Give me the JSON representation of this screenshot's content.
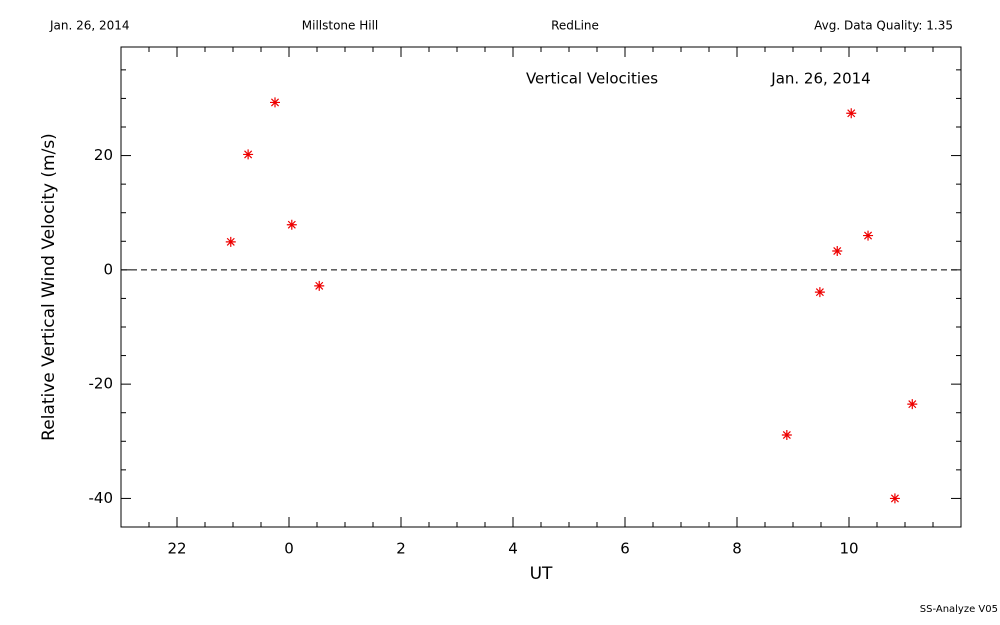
{
  "chart_data": {
    "type": "scatter",
    "header": [
      "Jan. 26, 2014",
      "Millstone Hill",
      "RedLine",
      "Avg. Data Quality: 1.35"
    ],
    "title": "Vertical Velocities",
    "subtitle": "Jan. 26, 2014",
    "x_label": "UT",
    "y_label": "Relative Vertical Wind Velocity (m/s)",
    "footer": "SS-Analyze V05",
    "xlim": [
      -3,
      12
    ],
    "xticks": [
      {
        "value": -2,
        "label": "22"
      },
      0,
      2,
      4,
      6,
      8,
      10
    ],
    "ylim": [
      -45,
      39
    ],
    "yticks": [
      -40,
      -20,
      0,
      20
    ],
    "reference_line": 0,
    "series": [
      {
        "color": "#ee0000",
        "x": [
          -1.04,
          -0.73,
          -0.25,
          0.05,
          0.54,
          8.89,
          9.48,
          9.79,
          10.04,
          10.34,
          10.82,
          11.13
        ],
        "values": [
          4.9,
          20.2,
          29.3,
          7.9,
          -2.8,
          -28.9,
          -3.9,
          3.3,
          27.4,
          6.0,
          -40,
          -23.5
        ]
      }
    ]
  }
}
